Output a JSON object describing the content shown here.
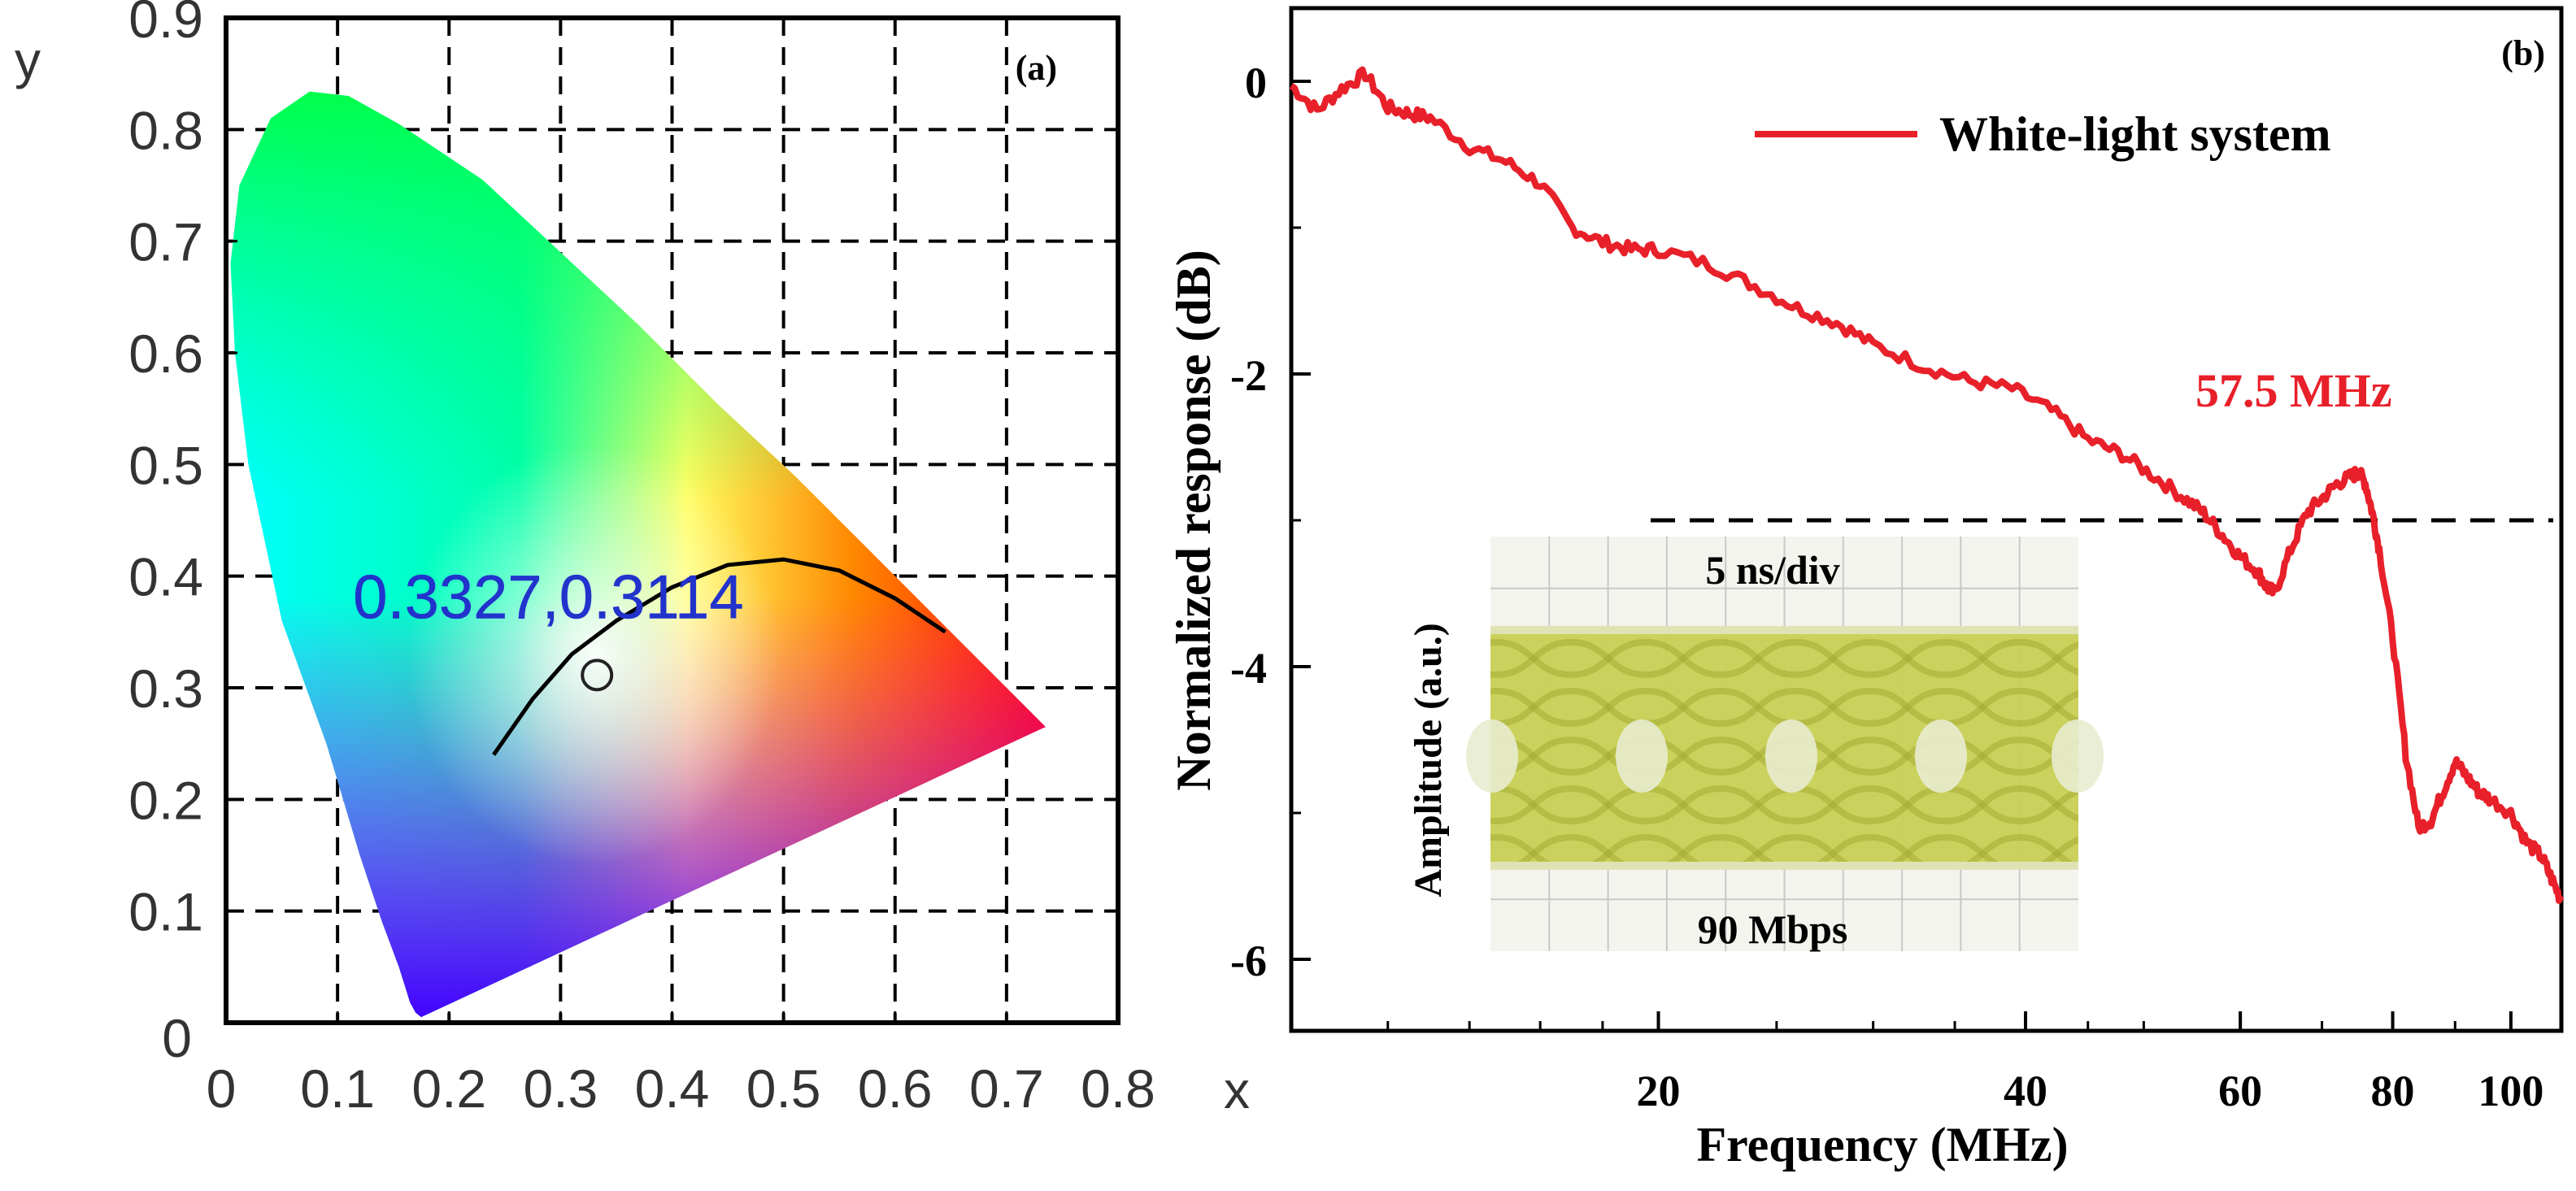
{
  "chart_data": [
    {
      "type": "scatter",
      "panel_label": "(a)",
      "subtype": "CIE 1931 chromaticity diagram",
      "xlabel": "x",
      "ylabel": "y",
      "xlim": [
        0,
        0.8
      ],
      "ylim": [
        0,
        0.9
      ],
      "x_ticks": [
        "0",
        "0.1",
        "0.2",
        "0.3",
        "0.4",
        "0.5",
        "0.6",
        "0.7",
        "0.8"
      ],
      "y_ticks": [
        "0",
        "0.1",
        "0.2",
        "0.3",
        "0.4",
        "0.5",
        "0.6",
        "0.7",
        "0.8",
        "0.9"
      ],
      "grid": true,
      "point": {
        "x": 0.3327,
        "y": 0.3114,
        "label": "0.3327,0.3114"
      },
      "planckian_locus": [
        {
          "x": 0.24,
          "y": 0.24
        },
        {
          "x": 0.275,
          "y": 0.29
        },
        {
          "x": 0.31,
          "y": 0.33
        },
        {
          "x": 0.35,
          "y": 0.36
        },
        {
          "x": 0.4,
          "y": 0.39
        },
        {
          "x": 0.45,
          "y": 0.41
        },
        {
          "x": 0.5,
          "y": 0.415
        },
        {
          "x": 0.55,
          "y": 0.405
        },
        {
          "x": 0.6,
          "y": 0.38
        },
        {
          "x": 0.645,
          "y": 0.35
        }
      ],
      "spectral_locus": [
        [
          0.175,
          0.005
        ],
        [
          0.17,
          0.009
        ],
        [
          0.165,
          0.018
        ],
        [
          0.155,
          0.05
        ],
        [
          0.14,
          0.09
        ],
        [
          0.12,
          0.15
        ],
        [
          0.09,
          0.25
        ],
        [
          0.05,
          0.36
        ],
        [
          0.02,
          0.5
        ],
        [
          0.008,
          0.6
        ],
        [
          0.004,
          0.68
        ],
        [
          0.012,
          0.75
        ],
        [
          0.04,
          0.81
        ],
        [
          0.075,
          0.834
        ],
        [
          0.11,
          0.83
        ],
        [
          0.155,
          0.805
        ],
        [
          0.23,
          0.755
        ],
        [
          0.3,
          0.69
        ],
        [
          0.37,
          0.625
        ],
        [
          0.44,
          0.555
        ],
        [
          0.51,
          0.49
        ],
        [
          0.575,
          0.425
        ],
        [
          0.63,
          0.37
        ],
        [
          0.68,
          0.32
        ],
        [
          0.735,
          0.265
        ]
      ]
    },
    {
      "type": "line",
      "panel_label": "(b)",
      "xlabel": "Frequency (MHz)",
      "ylabel": "Normalized response (dB)",
      "xscale": "log",
      "xlim": [
        10,
        110
      ],
      "ylim": [
        -6.5,
        0.5
      ],
      "x_ticks": [
        "20",
        "40",
        "60",
        "80",
        "100"
      ],
      "y_ticks": [
        "0",
        "-2",
        "-4",
        "-6"
      ],
      "legend": "White-light system",
      "legend_position": "top-right",
      "threshold": {
        "y": -3,
        "style": "dashed"
      },
      "annotation": "57.5 MHz",
      "series": [
        {
          "name": "White-light system",
          "color": "#e8202a",
          "x": [
            10,
            10.5,
            11,
            11.5,
            12,
            12.5,
            13,
            14,
            15,
            16,
            17,
            18,
            19,
            20,
            22,
            24,
            26,
            28,
            30,
            33,
            36,
            39,
            42,
            45,
            48,
            51,
            54,
            56,
            58,
            60,
            62,
            63,
            64,
            66,
            68,
            70,
            72,
            74,
            75,
            76,
            77,
            78,
            80,
            82,
            84,
            86,
            88,
            90,
            92,
            94,
            96,
            100,
            103,
            106,
            108,
            110
          ],
          "y": [
            -0.03,
            -0.2,
            -0.05,
            0.05,
            -0.18,
            -0.22,
            -0.25,
            -0.45,
            -0.55,
            -0.7,
            -1.0,
            -1.1,
            -1.15,
            -1.15,
            -1.25,
            -1.4,
            -1.55,
            -1.65,
            -1.8,
            -1.95,
            -2.05,
            -2.1,
            -2.25,
            -2.45,
            -2.55,
            -2.7,
            -2.85,
            -2.95,
            -3.1,
            -3.25,
            -3.35,
            -3.45,
            -3.5,
            -3.2,
            -2.95,
            -2.85,
            -2.75,
            -2.7,
            -2.67,
            -2.75,
            -2.95,
            -3.2,
            -3.8,
            -4.6,
            -5.1,
            -5.05,
            -4.85,
            -4.65,
            -4.75,
            -4.85,
            -4.9,
            -5.0,
            -5.2,
            -5.3,
            -5.45,
            -5.6
          ]
        }
      ],
      "inset": {
        "title": "5 ns/div",
        "caption": "90 Mbps",
        "ylabel": "Amplitude (a.u.)",
        "type": "eye diagram"
      }
    }
  ]
}
